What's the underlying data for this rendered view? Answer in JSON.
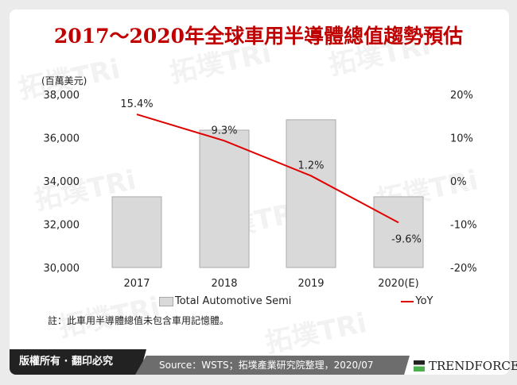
{
  "title": "2017～2020年全球車用半導體總值趨勢預估",
  "unit_label": "(百萬美元)",
  "note": "註：此車用半導體總值未包含車用記憶體。",
  "footer": {
    "copyright": "版權所有 · 翻印必究",
    "source": "Source：WSTS；拓墣產業研究院整理，2020/07",
    "brand": "TRENDFORCE"
  },
  "watermark": "拓墣TRi",
  "chart_data": {
    "type": "bar+line",
    "categories": [
      "2017",
      "2018",
      "2019",
      "2020(E)"
    ],
    "series": [
      {
        "name": "Total Automotive Semi",
        "type": "bar",
        "axis": "left",
        "color": "#d9d9d9",
        "values": [
          33270,
          36350,
          36830,
          33270
        ]
      },
      {
        "name": "YoY",
        "type": "line",
        "axis": "right",
        "color": "#e00000",
        "values": [
          15.4,
          9.3,
          1.2,
          -9.6
        ],
        "labels": [
          "15.4%",
          "9.3%",
          "1.2%",
          "-9.6%"
        ]
      }
    ],
    "left_axis": {
      "ylim": [
        30000,
        38000
      ],
      "ticks": [
        "30,000",
        "32,000",
        "34,000",
        "36,000",
        "38,000"
      ]
    },
    "right_axis": {
      "ylim": [
        -20,
        20
      ],
      "ticks": [
        "-20%",
        "-10%",
        "0%",
        "10%",
        "20%"
      ]
    },
    "grid": false,
    "legend": "bottom"
  }
}
